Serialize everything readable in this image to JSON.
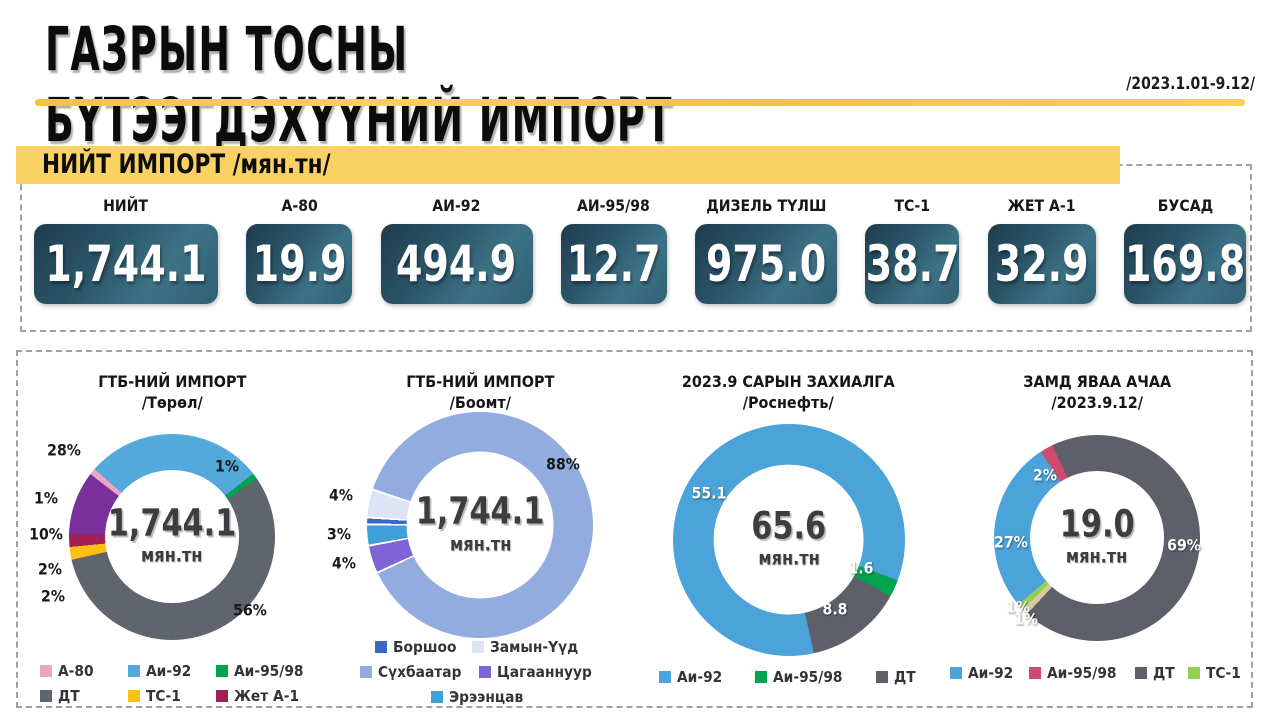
{
  "header": {
    "title": "ГАЗРЫН ТОСНЫ БҮТЭЭГДЭХҮҮНИЙ ИМПОРТ",
    "date_range": "/2023.1.01-9.12/"
  },
  "totals": {
    "title": "НИЙТ ИМПОРТ",
    "unit": "/мян.тн/",
    "stats": [
      {
        "label": "НИЙТ",
        "value": "1,744.1"
      },
      {
        "label": "А-80",
        "value": "19.9"
      },
      {
        "label": "АИ-92",
        "value": "494.9"
      },
      {
        "label": "АИ-95/98",
        "value": "12.7"
      },
      {
        "label": "ДИЗЕЛЬ ТҮЛШ",
        "value": "975.0"
      },
      {
        "label": "ТС-1",
        "value": "38.7"
      },
      {
        "label": "ЖЕТ А-1",
        "value": "32.9"
      },
      {
        "label": "БУСАД",
        "value": "169.8"
      }
    ]
  },
  "chart_data": [
    {
      "type": "donut",
      "title": "ГТБ-НИЙ ИМПОРТ",
      "subtitle": "/Төрөл/",
      "center_value": "1,744.1",
      "center_unit": "мян.тн",
      "start_angle": 311.2,
      "slices": [
        {
          "name": "Аи-92",
          "pct": 28,
          "color": "#54a9dc"
        },
        {
          "name": "Аи-95/98",
          "pct": 1,
          "color": "#00a350"
        },
        {
          "name": "ДТ",
          "pct": 56,
          "color": "#60646c"
        },
        {
          "name": "ТС-1",
          "pct": 2,
          "color": "#fcc011"
        },
        {
          "name": "Жет А-1",
          "pct": 2,
          "color": "#a32052"
        },
        {
          "name": "Бусад",
          "pct": 10,
          "color": "#7a2f9b"
        },
        {
          "name": "А-80",
          "pct": 1,
          "color": "#eba6c3"
        }
      ],
      "labels": [
        {
          "text": "28%",
          "x": 10,
          "y": 13.2,
          "style": "dark"
        },
        {
          "text": "1%",
          "x": 70.4,
          "y": 19.7,
          "style": "dark"
        },
        {
          "text": "1%",
          "x": 3.2,
          "y": 33.3,
          "style": "dark"
        },
        {
          "text": "10%",
          "x": 3.2,
          "y": 49.1,
          "style": "dark"
        },
        {
          "text": "2%",
          "x": 4.6,
          "y": 63.7,
          "style": "dark"
        },
        {
          "text": "2%",
          "x": 5.8,
          "y": 75.6,
          "style": "dark"
        },
        {
          "text": "56%",
          "x": 78.9,
          "y": 81.2,
          "style": "dark"
        }
      ],
      "legend": [
        {
          "label": "А-80",
          "color": "#eba6c3"
        },
        {
          "label": "Аи-92",
          "color": "#54a9dc"
        },
        {
          "label": "Аи-95/98",
          "color": "#00a350"
        },
        {
          "label": "ДТ",
          "color": "#60646c"
        },
        {
          "label": "ТС-1",
          "color": "#fcc011"
        },
        {
          "label": "Жет А-1",
          "color": "#a32052"
        }
      ]
    },
    {
      "type": "donut",
      "title": "ГТБ-НИЙ ИМПОРТ",
      "subtitle": "/Боомт/",
      "center_value": "1,744.1",
      "center_unit": "мян.тн",
      "start_angle": 288.8,
      "slice_gap": 0.3,
      "slices": [
        {
          "name": "Сүхбаатар",
          "pct": 88,
          "color": "#93acdf"
        },
        {
          "name": "Цагааннуур",
          "pct": 4,
          "color": "#7e64d4"
        },
        {
          "name": "Эрээнцав",
          "pct": 3,
          "color": "#3f9fd8"
        },
        {
          "name": "Боршоо",
          "pct": 1,
          "color": "#3a66c4"
        },
        {
          "name": "Замын-Үүд",
          "pct": 4,
          "color": "#dce4f5"
        }
      ],
      "labels": [
        {
          "text": "88%",
          "x": 77.7,
          "y": 21,
          "style": "dark"
        },
        {
          "text": "4%",
          "x": 3.5,
          "y": 35.7,
          "style": "dark"
        },
        {
          "text": "3%",
          "x": 2.9,
          "y": 54.2,
          "style": "dark"
        },
        {
          "text": "4%",
          "x": 4.5,
          "y": 68.1,
          "style": "dark"
        }
      ],
      "legend": [
        {
          "label": "Боршоо",
          "color": "#3a66c4"
        },
        {
          "label": "Замын-Үүд",
          "color": "#dce4f5"
        },
        {
          "label": "Сүхбаатар",
          "color": "#93acdf"
        },
        {
          "label": "Цагааннуур",
          "color": "#7e64d4"
        },
        {
          "label": "Эрээнцав",
          "color": "#3f9fd8"
        }
      ]
    },
    {
      "type": "donut",
      "title": "2023.9 САРЫН ЗАХИАЛГА",
      "subtitle": "/Роснефть/",
      "center_value": "65.6",
      "center_unit": "мян.тн",
      "start_angle": 167.6,
      "slices": [
        {
          "name": "Аи-92",
          "value": 55.1,
          "pct": 84.1,
          "color": "#4ba3d9"
        },
        {
          "name": "Аи-95/98",
          "value": 1.6,
          "pct": 2.4,
          "color": "#00a34f"
        },
        {
          "name": "ДТ",
          "value": 8.8,
          "pct": 13.5,
          "color": "#5d6069"
        }
      ],
      "labels": [
        {
          "text": "55.1",
          "x": 23.3,
          "y": 30.4,
          "style": "light"
        },
        {
          "text": "1.6",
          "x": 74.2,
          "y": 61.8,
          "style": "light"
        },
        {
          "text": "8.8",
          "x": 65.3,
          "y": 78.8,
          "style": "light"
        }
      ],
      "legend": [
        {
          "label": "Аи-92",
          "color": "#4ba3d9"
        },
        {
          "label": "Аи-95/98",
          "color": "#00a34f"
        },
        {
          "label": "ДТ",
          "color": "#5d6069"
        }
      ]
    },
    {
      "type": "donut",
      "title": "ЗАМД ЯВАА АЧАА",
      "subtitle": "/2023.9.12/",
      "center_value": "19.0",
      "center_unit": "мян.тн",
      "start_angle": 327,
      "slices": [
        {
          "name": "Аи-95/98",
          "pct": 2,
          "color": "#cf4a6e"
        },
        {
          "name": "ДТ",
          "pct": 69,
          "color": "#5d6069"
        },
        {
          "name": "Бусад",
          "pct": 1,
          "color": "#d8c9a5"
        },
        {
          "name": "ТС-1",
          "pct": 1,
          "color": "#92d050"
        },
        {
          "name": "Аи-92",
          "pct": 27,
          "color": "#4ba3d9"
        }
      ],
      "labels": [
        {
          "text": "2%",
          "x": 30.7,
          "y": 23.3,
          "style": "light"
        },
        {
          "text": "27%",
          "x": 18.1,
          "y": 51.7,
          "style": "light"
        },
        {
          "text": "69%",
          "x": 82.2,
          "y": 53,
          "style": "light"
        },
        {
          "text": "1%",
          "x": 20.7,
          "y": 79.2,
          "style": "light"
        },
        {
          "text": "1%",
          "x": 23.6,
          "y": 84.6,
          "style": "light"
        }
      ],
      "legend": [
        {
          "label": "Аи-92",
          "color": "#4ba3d9"
        },
        {
          "label": "Аи-95/98",
          "color": "#cf4a6e"
        },
        {
          "label": "ДТ",
          "color": "#5d6069"
        },
        {
          "label": "ТС-1",
          "color": "#92d050"
        }
      ]
    }
  ]
}
